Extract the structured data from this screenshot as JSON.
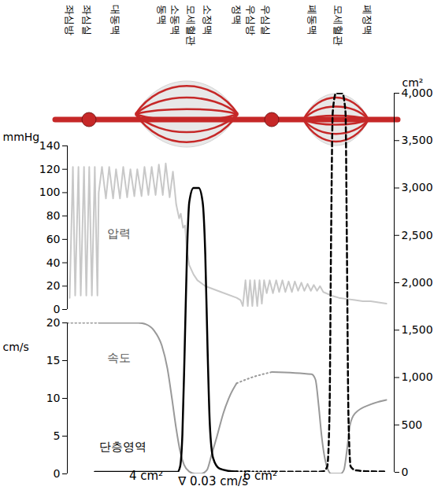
{
  "diagram": {
    "labels": [
      {
        "text": "좌심방",
        "x": 0.7
      },
      {
        "text": "좌심실",
        "x": 6.0
      },
      {
        "text": "대동맥",
        "x": 14.5
      },
      {
        "text": "동맥",
        "x": 28.9
      },
      {
        "text": "소동맥",
        "x": 33.0
      },
      {
        "text": "모세혈관",
        "x": 37.8
      },
      {
        "text": "소정맥",
        "x": 42.7
      },
      {
        "text": "정맥",
        "x": 51.8
      },
      {
        "text": "우심방",
        "x": 56.1
      },
      {
        "text": "우심실",
        "x": 60.5
      },
      {
        "text": "폐동맥",
        "x": 74.7
      },
      {
        "text": "모세혈관",
        "x": 82.7
      },
      {
        "text": "폐정맥",
        "x": 91.6
      }
    ]
  },
  "chart_data": [
    {
      "type": "line",
      "ylabel": "mmHg",
      "xlim": [
        0,
        100
      ],
      "ylim": [
        0,
        140
      ],
      "yticks": [
        0,
        20,
        40,
        60,
        80,
        100,
        120,
        140
      ],
      "tick_labels": "y",
      "series": [
        {
          "color": "#c8c8c8",
          "line_style": "solid",
          "x": [
            0.7,
            1.7,
            2.4,
            3.4,
            4.1,
            5.1,
            5.8,
            6.7,
            7.5,
            8.4,
            9.2,
            9.6,
            10.6,
            11.8,
            12.8,
            14.0,
            14.9,
            16.1,
            17.1,
            18.3,
            19.3,
            20.5,
            21.4,
            22.7,
            23.6,
            24.8,
            25.8,
            27.0,
            28.0,
            29.2,
            30.1,
            31.3,
            32.3,
            33.3,
            34.2,
            34.7,
            35.4,
            36.0,
            36.6,
            37.3,
            38.6,
            39.8,
            42.2,
            47.0,
            51.8,
            53.0,
            53.7,
            54.5,
            55.2,
            55.9,
            56.6,
            57.3,
            58.1,
            58.8,
            59.5,
            60.2,
            61.0,
            61.9,
            62.9,
            63.9,
            64.8,
            65.8,
            66.7,
            67.7,
            68.7,
            69.6,
            70.6,
            71.6,
            72.5,
            73.5,
            74.5,
            75.4,
            76.4,
            77.3,
            78.3,
            80.7,
            83.1,
            85.5,
            88.0,
            90.4,
            92.8,
            95.2,
            97.6
          ],
          "values": [
            10,
            122,
            12,
            122,
            12,
            122,
            12,
            122,
            12,
            122,
            12,
            100,
            122,
            95,
            122,
            95,
            120,
            95,
            122,
            96,
            120,
            97,
            120,
            97,
            122,
            98,
            122,
            98,
            124,
            98,
            125,
            96,
            118,
            90,
            78,
            82,
            70,
            72,
            50,
            38,
            30,
            25,
            20,
            15,
            10,
            8,
            3,
            25,
            3,
            25,
            3,
            25,
            3,
            25,
            5,
            25,
            14,
            25,
            14,
            25,
            15,
            25,
            15,
            24,
            15,
            24,
            16,
            23,
            16,
            22,
            16,
            21,
            16,
            20,
            15,
            12,
            10,
            9,
            8,
            7,
            7,
            6,
            5
          ]
        }
      ],
      "annotations": [
        {
          "text": "압력",
          "x": 15.7,
          "y": 65
        }
      ]
    },
    {
      "type": "line",
      "ylabel": "cm/s",
      "xlim": [
        0,
        100
      ],
      "ylim": [
        0,
        20
      ],
      "yticks": [
        0,
        5,
        10,
        15,
        20
      ],
      "tick_labels": "y",
      "series": [
        {
          "color": "#999999",
          "line_style": "dotted",
          "x": [
            0,
            9.6
          ],
          "values": [
            20,
            20
          ]
        },
        {
          "color": "#999999",
          "line_style": "solid",
          "x": [
            9.6,
            21.7,
            24.1,
            26.5,
            28.9,
            30.6,
            32.0,
            33.3,
            34.5,
            35.7,
            37.3,
            39.0,
            41.0,
            42.7,
            44.1,
            45.8,
            47.7,
            49.9,
            51.8
          ],
          "values": [
            20,
            20,
            19.8,
            19,
            17,
            14,
            10,
            6,
            3,
            1.2,
            0.3,
            0.03,
            0.03,
            0.5,
            2.5,
            5,
            8,
            10.5,
            12
          ]
        },
        {
          "color": "#999999",
          "line_style": "dotted",
          "x": [
            51.8,
            56.6,
            62.7
          ],
          "values": [
            12,
            12.8,
            13.5
          ]
        },
        {
          "color": "#999999",
          "line_style": "solid",
          "x": [
            62.7,
            74.7,
            75.9,
            76.9,
            77.8,
            78.8,
            79.8,
            80.7,
            83.6,
            84.6,
            85.5,
            86.5,
            88.0,
            92.8,
            97.6
          ],
          "values": [
            13.5,
            13.2,
            12.5,
            9,
            5,
            2,
            0.5,
            0.03,
            0.03,
            0.5,
            3,
            6.5,
            8,
            9.2,
            9.8
          ]
        }
      ],
      "annotations": [
        {
          "text": "속도",
          "x": 15.7,
          "y": 15.3
        }
      ]
    },
    {
      "type": "line",
      "y2label": "cm²",
      "xlim": [
        0,
        100
      ],
      "y2lim": [
        0,
        4000
      ],
      "y2ticks": [
        0,
        500,
        {
          "value": 1000,
          "label": "1,000"
        },
        {
          "value": 1500,
          "label": "1,500"
        },
        {
          "value": 2000,
          "label": "2,000"
        },
        {
          "value": 2500,
          "label": "2,500"
        },
        {
          "value": 3000,
          "label": "3,000"
        },
        {
          "value": 3500,
          "label": "3,500"
        },
        {
          "value": 4000,
          "label": "4,000"
        }
      ],
      "tick_labels": "y",
      "series": [
        {
          "color": "#000000",
          "line_style": "solid",
          "axis": "y2",
          "x": [
            8.4,
            33.7,
            34.5,
            35.2,
            35.9,
            36.6,
            37.3,
            38.6,
            40.2,
            41.4,
            42.2,
            42.9,
            43.6,
            44.6,
            46.5,
            49.4,
            51.8
          ],
          "values": [
            4,
            4,
            60,
            400,
            1300,
            2300,
            2850,
            3000,
            3000,
            2850,
            2300,
            1300,
            500,
            150,
            40,
            15,
            8
          ]
        },
        {
          "color": "#000000",
          "line_style": "dotted",
          "axis": "y2",
          "x": [
            51.8,
            62.7
          ],
          "values": [
            8,
            6
          ]
        },
        {
          "color": "#000000",
          "line_style": "dashed",
          "axis": "y2",
          "x": [
            62.7,
            75.9,
            78.3,
            79.5,
            80.2,
            80.7,
            81.2,
            82.2,
            84.1,
            85.1,
            85.5,
            86.0,
            86.7,
            88.4,
            92.8,
            97.6
          ],
          "values": [
            6,
            6,
            10,
            60,
            600,
            2500,
            3800,
            4000,
            4000,
            3800,
            2500,
            600,
            60,
            20,
            10,
            8
          ]
        }
      ],
      "annotations": [
        {
          "text": "단층영역",
          "x": 16.9,
          "y": 266
        },
        {
          "text": "4 cm²",
          "x": 24.1,
          "y": -41
        },
        {
          "text": "∇ 0.03 cm/s",
          "x": 44.6,
          "y": -100
        },
        {
          "text": "6 cm²",
          "x": 59.0,
          "y": -41
        }
      ]
    }
  ]
}
